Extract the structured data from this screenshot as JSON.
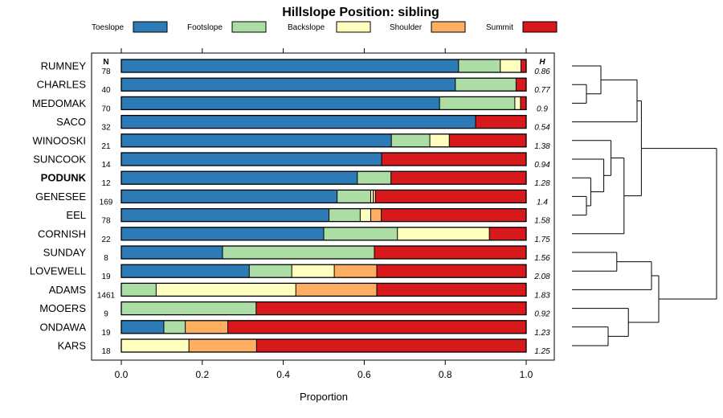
{
  "chart_data": {
    "type": "bar",
    "stacked": true,
    "orientation": "horizontal",
    "title": "Hillslope Position: sibling",
    "xlabel": "Proportion",
    "xlim": [
      0,
      1
    ],
    "xticks": [
      "0.0",
      "0.2",
      "0.4",
      "0.6",
      "0.8",
      "1.0"
    ],
    "xtick_values": [
      0,
      0.2,
      0.4,
      0.6,
      0.8,
      1.0
    ],
    "n_header": "N",
    "h_header": "H",
    "highlight": "PODUNK",
    "legend_position": "top",
    "series": [
      {
        "name": "Toeslope",
        "color": "#2c7bb6"
      },
      {
        "name": "Footslope",
        "color": "#abdda4"
      },
      {
        "name": "Backslope",
        "color": "#ffffbf"
      },
      {
        "name": "Shoulder",
        "color": "#fdae61"
      },
      {
        "name": "Summit",
        "color": "#d7191c"
      }
    ],
    "categories": [
      "RUMNEY",
      "CHARLES",
      "MEDOMAK",
      "SACO",
      "WINOOSKI",
      "SUNCOOK",
      "PODUNK",
      "GENESEE",
      "EEL",
      "CORNISH",
      "SUNDAY",
      "LOVEWELL",
      "ADAMS",
      "MOOERS",
      "ONDAWA",
      "KARS"
    ],
    "n": [
      "78",
      "40",
      "70",
      "32",
      "21",
      "14",
      "12",
      "169",
      "78",
      "22",
      "8",
      "19",
      "1461",
      "9",
      "19",
      "18"
    ],
    "h": [
      "0.86",
      "0.77",
      "0.9",
      "0.54",
      "1.38",
      "0.94",
      "1.28",
      "1.4",
      "1.58",
      "1.75",
      "1.56",
      "2.08",
      "1.83",
      "0.92",
      "1.23",
      "1.25"
    ],
    "values": [
      [
        0.833,
        0.103,
        0.051,
        0.0,
        0.013
      ],
      [
        0.825,
        0.15,
        0.0,
        0.0,
        0.025
      ],
      [
        0.786,
        0.186,
        0.014,
        0.0,
        0.014
      ],
      [
        0.875,
        0.0,
        0.0,
        0.0,
        0.125
      ],
      [
        0.667,
        0.095,
        0.048,
        0.0,
        0.19
      ],
      [
        0.643,
        0.0,
        0.0,
        0.0,
        0.357
      ],
      [
        0.583,
        0.083,
        0.0,
        0.0,
        0.333
      ],
      [
        0.533,
        0.083,
        0.006,
        0.006,
        0.373
      ],
      [
        0.513,
        0.077,
        0.026,
        0.026,
        0.359
      ],
      [
        0.5,
        0.182,
        0.227,
        0.0,
        0.091
      ],
      [
        0.25,
        0.375,
        0.0,
        0.0,
        0.375
      ],
      [
        0.316,
        0.105,
        0.105,
        0.105,
        0.368
      ],
      [
        0.0,
        0.086,
        0.345,
        0.2,
        0.369
      ],
      [
        0.0,
        0.333,
        0.0,
        0.0,
        0.667
      ],
      [
        0.105,
        0.053,
        0.0,
        0.105,
        0.737
      ],
      [
        0.0,
        0.0,
        0.167,
        0.167,
        0.667
      ]
    ],
    "dendrogram": {
      "description": "hierarchical clustering of the profiles (merge heights in relative units)",
      "clusters": [
        {
          "left": "CHARLES",
          "right": "MEDOMAK",
          "height": 0.1
        },
        {
          "left": "RUMNEY",
          "right": "CHARLES+MEDOMAK",
          "height": 0.2
        },
        {
          "left": "GENESEE",
          "right": "EEL",
          "height": 0.1
        },
        {
          "left": "PODUNK",
          "right": "GENESEE+EEL",
          "height": 0.13
        },
        {
          "left": "SUNCOOK",
          "right": "PODUNK+GENESEE+EEL",
          "height": 0.22
        },
        {
          "left": "WINOOSKI",
          "right": "SUNCOOK+PODUNK+GENESEE+EEL",
          "height": 0.27
        },
        {
          "left": "WINOOSKI+SUNCOOK+PODUNK+GENESEE+EEL",
          "right": "CORNISH",
          "height": 0.36
        },
        {
          "left": "RUMNEY+CHARLES+MEDOMAK",
          "right": "SACO",
          "height": 0.45
        },
        {
          "left": "RUMNEY..SACO",
          "right": "WINOOSKI..CORNISH",
          "height": 0.48
        },
        {
          "left": "SUNDAY",
          "right": "LOVEWELL",
          "height": 0.31
        },
        {
          "left": "SUNDAY+LOVEWELL",
          "right": "ADAMS",
          "height": 0.55
        },
        {
          "left": "ONDAWA",
          "right": "KARS",
          "height": 0.25
        },
        {
          "left": "MOOERS",
          "right": "ONDAWA+KARS",
          "height": 0.39
        },
        {
          "left": "SUNDAY+LOVEWELL+ADAMS",
          "right": "MOOERS+ONDAWA+KARS",
          "height": 0.6
        },
        {
          "left": "RUMNEY..CORNISH",
          "right": "SUNDAY..KARS",
          "height": 1.0
        }
      ]
    }
  }
}
